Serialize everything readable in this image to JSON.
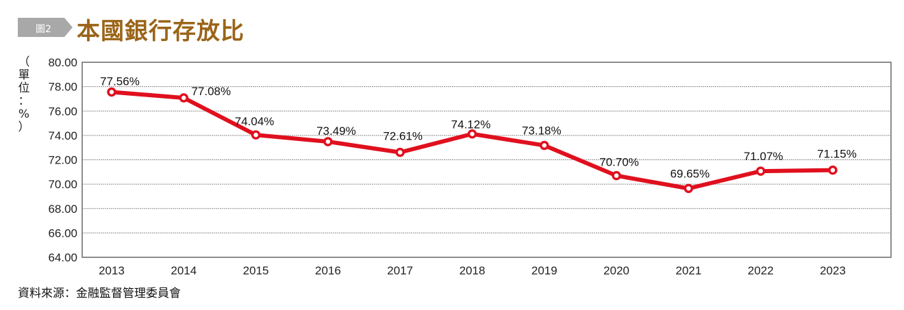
{
  "header": {
    "figure_label": "圖2",
    "title": "本國銀行存放比"
  },
  "colors": {
    "title": "#9a6418",
    "badge": "#a8a8a8",
    "line": "#e0101e",
    "grid": "#8a8a8a",
    "axis": "#8c8c8c"
  },
  "unit_label": [
    "（",
    "單",
    "位",
    "：",
    "%",
    "）"
  ],
  "source": "資料來源：金融監督管理委員會",
  "chart_data": {
    "type": "line",
    "title": "本國銀行存放比",
    "xlabel": "",
    "ylabel": "（單位：%）",
    "categories": [
      "2013",
      "2014",
      "2015",
      "2016",
      "2017",
      "2018",
      "2019",
      "2020",
      "2021",
      "2022",
      "2023"
    ],
    "series": [
      {
        "name": "存放比",
        "values": [
          77.56,
          77.08,
          74.04,
          73.49,
          72.61,
          74.12,
          73.18,
          70.7,
          69.65,
          71.07,
          71.15
        ],
        "labels": [
          "77.56%",
          "77.08%",
          "74.04%",
          "73.49%",
          "72.61%",
          "74.12%",
          "73.18%",
          "70.70%",
          "69.65%",
          "71.07%",
          "71.15%"
        ]
      }
    ],
    "ylim": [
      64,
      80
    ],
    "yticks": [
      64,
      66,
      68,
      70,
      72,
      74,
      76,
      78,
      80
    ],
    "ytick_labels": [
      "64.00",
      "66.00",
      "68.00",
      "70.00",
      "72.00",
      "74.00",
      "76.00",
      "78.00",
      "80.00"
    ],
    "grid": true,
    "legend": "none"
  }
}
